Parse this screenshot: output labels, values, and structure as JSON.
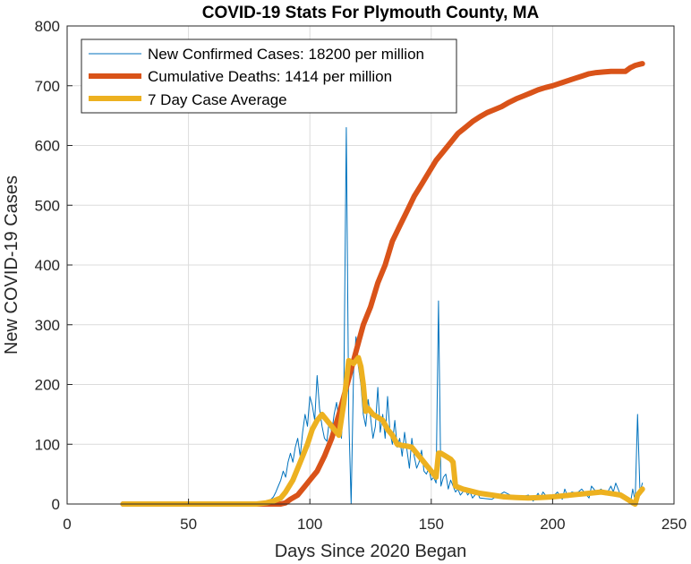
{
  "chart_data": {
    "type": "line",
    "title": "COVID-19 Stats For Plymouth County, MA",
    "xlabel": "Days Since 2020 Began",
    "ylabel": "New COVID-19 Cases",
    "xlim": [
      0,
      250
    ],
    "ylim": [
      0,
      800
    ],
    "xticks": [
      0,
      50,
      100,
      150,
      200,
      250
    ],
    "yticks": [
      0,
      100,
      200,
      300,
      400,
      500,
      600,
      700,
      800
    ],
    "grid": true,
    "legend_position": "top-left",
    "series": [
      {
        "name": "New Confirmed Cases: 18200 per million",
        "color": "#0072BD",
        "style": "thin",
        "x": [
          23,
          30,
          40,
          50,
          60,
          70,
          78,
          80,
          82,
          84,
          85,
          86,
          87,
          88,
          89,
          90,
          91,
          92,
          93,
          94,
          95,
          96,
          97,
          98,
          99,
          100,
          101,
          102,
          103,
          104,
          105,
          106,
          107,
          108,
          109,
          110,
          111,
          112,
          113,
          114,
          115,
          116,
          117,
          118,
          119,
          120,
          121,
          122,
          123,
          124,
          125,
          126,
          127,
          128,
          129,
          130,
          131,
          132,
          133,
          134,
          135,
          136,
          137,
          138,
          139,
          140,
          141,
          142,
          143,
          144,
          145,
          146,
          147,
          148,
          149,
          150,
          151,
          152,
          153,
          154,
          155,
          156,
          157,
          158,
          159,
          160,
          161,
          162,
          163,
          164,
          165,
          166,
          167,
          168,
          169,
          170,
          175,
          180,
          185,
          190,
          192,
          194,
          195,
          196,
          198,
          200,
          202,
          204,
          205,
          206,
          208,
          210,
          212,
          214,
          215,
          216,
          218,
          220,
          222,
          224,
          225,
          226,
          228,
          230,
          232,
          233,
          234,
          235,
          236,
          237
        ],
        "values": [
          0,
          0,
          0,
          0,
          0,
          0,
          0,
          2,
          5,
          8,
          12,
          20,
          30,
          40,
          55,
          45,
          70,
          85,
          70,
          95,
          110,
          80,
          120,
          150,
          130,
          180,
          165,
          140,
          215,
          160,
          130,
          110,
          105,
          140,
          120,
          150,
          170,
          140,
          110,
          200,
          630,
          150,
          0,
          220,
          280,
          230,
          200,
          150,
          130,
          175,
          145,
          110,
          130,
          195,
          120,
          150,
          110,
          180,
          120,
          100,
          140,
          95,
          110,
          80,
          120,
          90,
          60,
          110,
          80,
          60,
          70,
          90,
          55,
          50,
          60,
          40,
          45,
          35,
          340,
          30,
          45,
          50,
          25,
          40,
          30,
          20,
          25,
          15,
          20,
          25,
          15,
          20,
          10,
          15,
          20,
          10,
          8,
          20,
          10,
          15,
          5,
          18,
          10,
          20,
          10,
          12,
          20,
          8,
          25,
          15,
          20,
          18,
          25,
          15,
          10,
          30,
          20,
          25,
          15,
          30,
          20,
          35,
          15,
          10,
          0,
          25,
          5,
          150,
          20,
          35
        ]
      },
      {
        "name": "Cumulative Deaths: 1414 per million",
        "color": "#D95319",
        "style": "thick",
        "x": [
          23,
          30,
          40,
          50,
          60,
          70,
          80,
          85,
          88,
          90,
          92,
          95,
          98,
          100,
          103,
          106,
          109,
          112,
          115,
          118,
          120,
          122,
          125,
          128,
          131,
          134,
          137,
          140,
          143,
          146,
          149,
          152,
          155,
          158,
          161,
          164,
          167,
          170,
          173,
          176,
          179,
          182,
          185,
          188,
          191,
          194,
          197,
          200,
          203,
          206,
          209,
          212,
          215,
          218,
          221,
          224,
          227,
          230,
          231,
          232,
          233,
          234,
          235,
          236,
          237
        ],
        "values": [
          0,
          0,
          0,
          0,
          0,
          0,
          0,
          0,
          0,
          2,
          8,
          15,
          30,
          40,
          55,
          80,
          110,
          150,
          195,
          240,
          270,
          300,
          330,
          370,
          400,
          440,
          465,
          490,
          515,
          535,
          555,
          575,
          590,
          605,
          620,
          630,
          640,
          648,
          655,
          660,
          665,
          672,
          678,
          683,
          688,
          693,
          697,
          700,
          704,
          708,
          712,
          716,
          720,
          722,
          723,
          724,
          724,
          724,
          727,
          730,
          732,
          734,
          735,
          736,
          737
        ]
      },
      {
        "name": "7 Day Case Average",
        "color": "#EDB120",
        "style": "thick",
        "x": [
          23,
          30,
          40,
          50,
          60,
          70,
          78,
          82,
          85,
          88,
          90,
          93,
          96,
          99,
          101,
          103,
          105,
          108,
          110,
          112,
          114,
          116,
          118,
          120,
          121,
          122,
          123,
          124,
          126,
          128,
          130,
          132,
          134,
          136,
          138,
          140,
          142,
          144,
          146,
          148,
          150,
          152,
          153,
          154,
          156,
          158,
          159,
          160,
          163,
          166,
          170,
          175,
          180,
          185,
          190,
          195,
          200,
          205,
          210,
          215,
          220,
          225,
          228,
          230,
          232,
          233,
          234,
          235,
          236,
          237
        ],
        "values": [
          0,
          0,
          0,
          0,
          0,
          0,
          0,
          2,
          5,
          10,
          20,
          40,
          70,
          100,
          125,
          140,
          150,
          135,
          125,
          115,
          170,
          240,
          235,
          245,
          230,
          200,
          155,
          160,
          150,
          145,
          140,
          125,
          115,
          100,
          98,
          97,
          95,
          85,
          75,
          65,
          55,
          45,
          85,
          85,
          80,
          75,
          70,
          30,
          25,
          22,
          18,
          15,
          12,
          11,
          10,
          11,
          12,
          14,
          16,
          18,
          20,
          17,
          15,
          10,
          5,
          2,
          0,
          15,
          20,
          25
        ]
      }
    ]
  }
}
